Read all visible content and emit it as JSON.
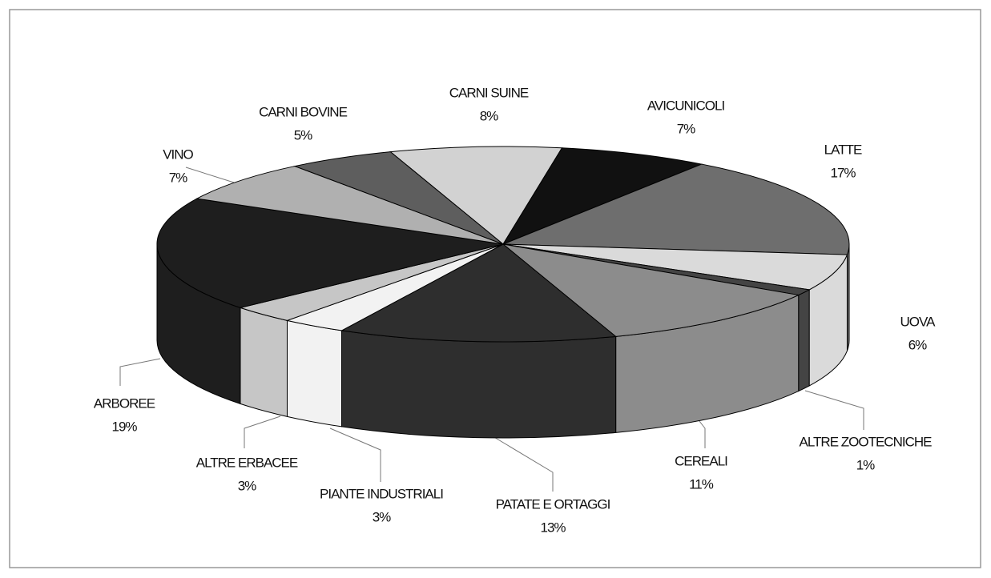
{
  "chart_data": {
    "type": "pie3d",
    "categories": [
      "CARNI SUINE",
      "AVICUNICOLI",
      "LATTE",
      "UOVA",
      "ALTRE ZOOTECNICHE",
      "CEREALI",
      "PATATE E ORTAGGI",
      "PIANTE INDUSTRIALI",
      "ALTRE ERBACEE",
      "ARBOREE",
      "VINO",
      "CARNI BOVINE"
    ],
    "values": [
      8,
      7,
      17,
      6,
      1,
      11,
      13,
      3,
      3,
      19,
      7,
      5
    ],
    "value_labels": [
      "8%",
      "7%",
      "17%",
      "6%",
      "1%",
      "11%",
      "13%",
      "3%",
      "3%",
      "19%",
      "7%",
      "5%"
    ],
    "colors": [
      "#d2d2d2",
      "#111111",
      "#6e6e6e",
      "#dadada",
      "#444444",
      "#8c8c8c",
      "#2e2e2e",
      "#f2f2f2",
      "#c6c6c6",
      "#1e1e1e",
      "#b0b0b0",
      "#5e5e5e"
    ]
  }
}
